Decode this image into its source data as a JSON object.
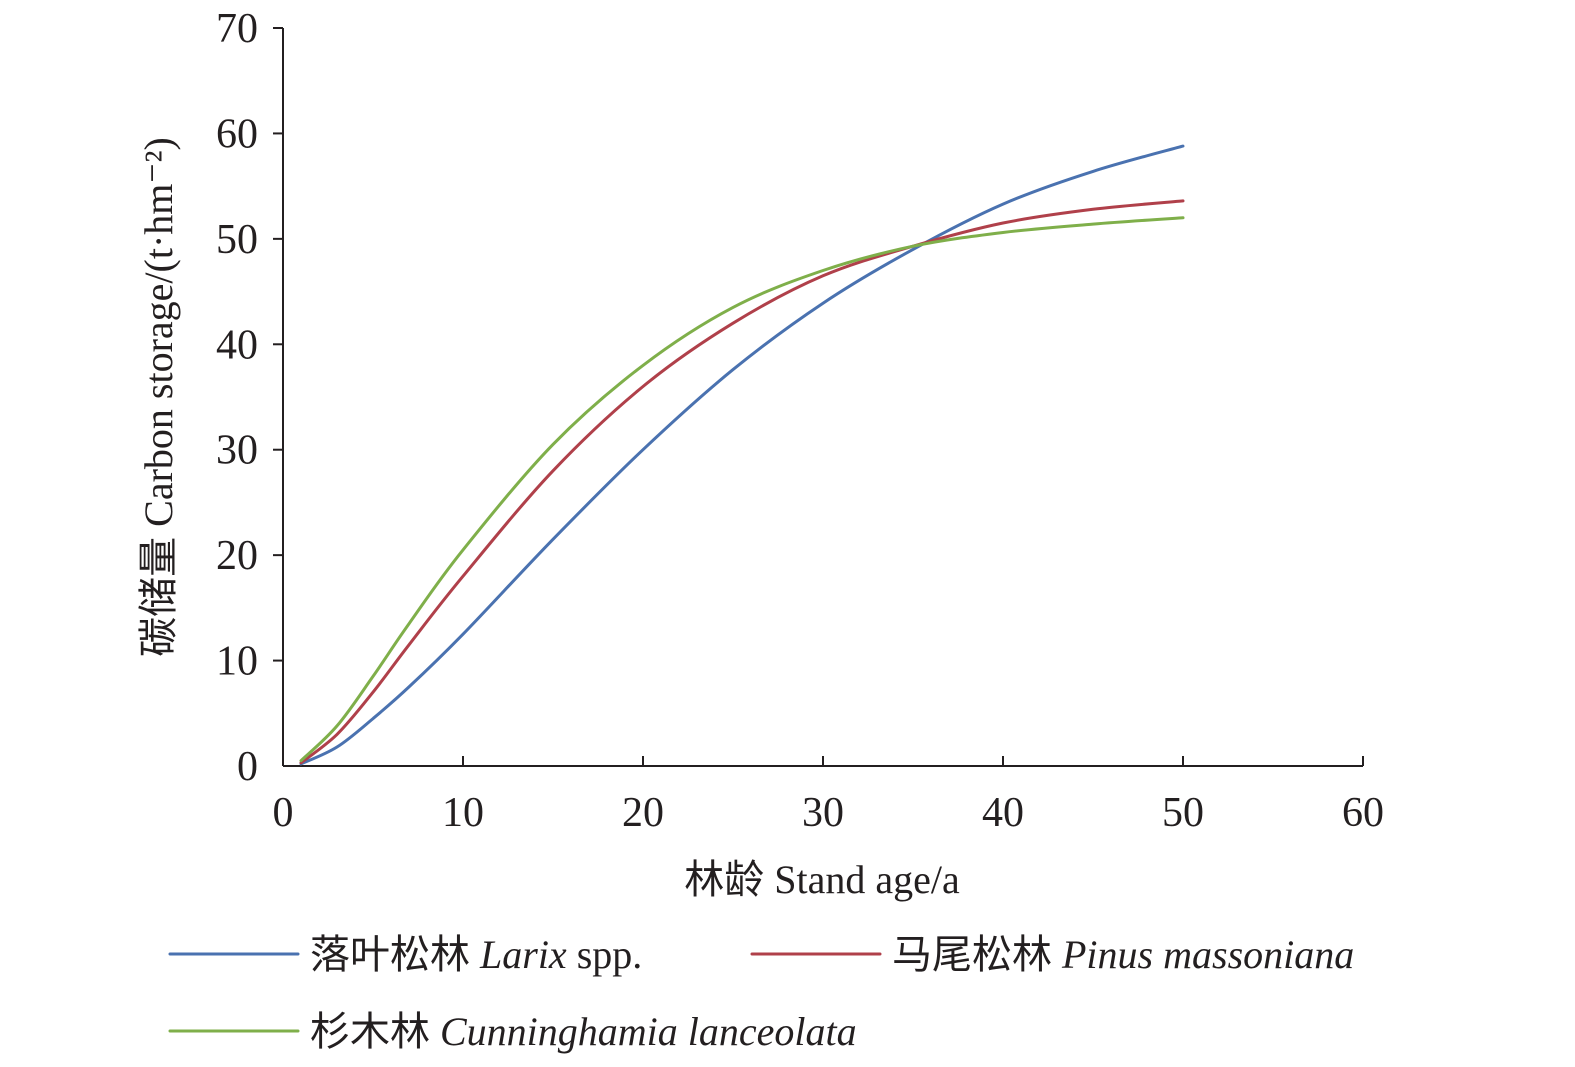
{
  "chart_data": {
    "type": "line",
    "xlabel": "林龄 Stand age/a",
    "ylabel": "碳储量 Carbon storage/(t·hm⁻²)",
    "xlim": [
      0,
      60
    ],
    "ylim": [
      0,
      70
    ],
    "x_ticks": [
      "0",
      "10",
      "20",
      "30",
      "40",
      "50",
      "60"
    ],
    "y_ticks": [
      "0",
      "10",
      "20",
      "30",
      "40",
      "50",
      "60",
      "70"
    ],
    "x": [
      1,
      3,
      5,
      7,
      10,
      15,
      20,
      25,
      30,
      35,
      40,
      45,
      50
    ],
    "grid": false,
    "legend_position": "bottom",
    "series": [
      {
        "name": "落叶松林",
        "name_italic": "Larix",
        "name_suffix": " spp.",
        "color": "#4a72b0",
        "values": [
          0.2,
          1.8,
          4.5,
          7.5,
          12.5,
          21.5,
          30.0,
          37.6,
          43.9,
          49.0,
          53.3,
          56.4,
          58.8
        ]
      },
      {
        "name": "马尾松林",
        "name_italic": "Pinus massoniana",
        "name_suffix": "",
        "color": "#b0404a",
        "values": [
          0.3,
          3.0,
          7.0,
          11.5,
          18.0,
          28.0,
          36.0,
          42.0,
          46.5,
          49.3,
          51.5,
          52.8,
          53.6
        ]
      },
      {
        "name": "杉木林",
        "name_italic": "Cunninghamia lanceolata",
        "name_suffix": "",
        "color": "#7faf4a",
        "values": [
          0.5,
          3.8,
          8.5,
          13.5,
          20.5,
          30.5,
          38.0,
          43.5,
          47.0,
          49.3,
          50.6,
          51.4,
          52.0
        ]
      }
    ]
  }
}
